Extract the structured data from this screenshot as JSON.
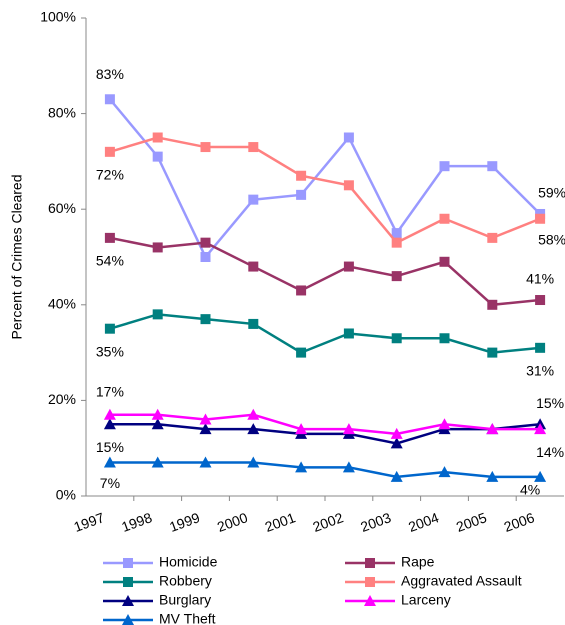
{
  "chart_data": {
    "type": "line",
    "y_label": "Percent of Crimes Cleared",
    "categories": [
      "1997",
      "1998",
      "1999",
      "2000",
      "2001",
      "2002",
      "2003",
      "2004",
      "2005",
      "2006"
    ],
    "ylim": [
      0,
      100
    ],
    "yticks": [
      {
        "value": 0,
        "label": "0%"
      },
      {
        "value": 20,
        "label": "20%"
      },
      {
        "value": 40,
        "label": "40%"
      },
      {
        "value": 60,
        "label": "60%"
      },
      {
        "value": 80,
        "label": "80%"
      },
      {
        "value": 100,
        "label": "100%"
      }
    ],
    "grid": false,
    "series": [
      {
        "name": "Homicide",
        "color": "#9999ff",
        "marker": "square",
        "values": [
          83,
          71,
          50,
          62,
          63,
          75,
          55,
          69,
          69,
          59
        ],
        "value_labels": [
          "83%",
          null,
          null,
          null,
          null,
          null,
          null,
          null,
          null,
          "59%"
        ]
      },
      {
        "name": "Rape",
        "color": "#993366",
        "marker": "square",
        "values": [
          54,
          52,
          53,
          48,
          43,
          48,
          46,
          49,
          40,
          41
        ],
        "value_labels": [
          "54%",
          null,
          null,
          null,
          null,
          null,
          null,
          null,
          null,
          "41%"
        ]
      },
      {
        "name": "Robbery",
        "color": "#008080",
        "marker": "square",
        "values": [
          35,
          38,
          37,
          36,
          30,
          34,
          33,
          33,
          30,
          31
        ],
        "value_labels": [
          "35%",
          null,
          null,
          null,
          null,
          null,
          null,
          null,
          null,
          "31%"
        ]
      },
      {
        "name": "Aggravated Assault",
        "color": "#ff8080",
        "marker": "square",
        "values": [
          72,
          75,
          73,
          73,
          67,
          65,
          53,
          58,
          54,
          58
        ],
        "value_labels": [
          "72%",
          null,
          null,
          null,
          null,
          null,
          null,
          null,
          null,
          "58%"
        ]
      },
      {
        "name": "Burglary",
        "color": "#000080",
        "marker": "triangle",
        "values": [
          15,
          15,
          14,
          14,
          13,
          13,
          11,
          14,
          14,
          15
        ],
        "value_labels": [
          "15%",
          null,
          null,
          null,
          null,
          null,
          null,
          null,
          null,
          "15%"
        ]
      },
      {
        "name": "Larceny",
        "color": "#ff00ff",
        "marker": "triangle",
        "values": [
          17,
          17,
          16,
          17,
          14,
          14,
          13,
          15,
          14,
          14
        ],
        "value_labels": [
          "17%",
          null,
          null,
          null,
          null,
          null,
          null,
          null,
          null,
          "14%"
        ]
      },
      {
        "name": "MV Theft",
        "color": "#0066cc",
        "marker": "triangle",
        "values": [
          7,
          7,
          7,
          7,
          6,
          6,
          4,
          5,
          4,
          4
        ],
        "value_labels": [
          "7%",
          null,
          null,
          null,
          null,
          null,
          null,
          null,
          null,
          "4%"
        ]
      }
    ]
  }
}
